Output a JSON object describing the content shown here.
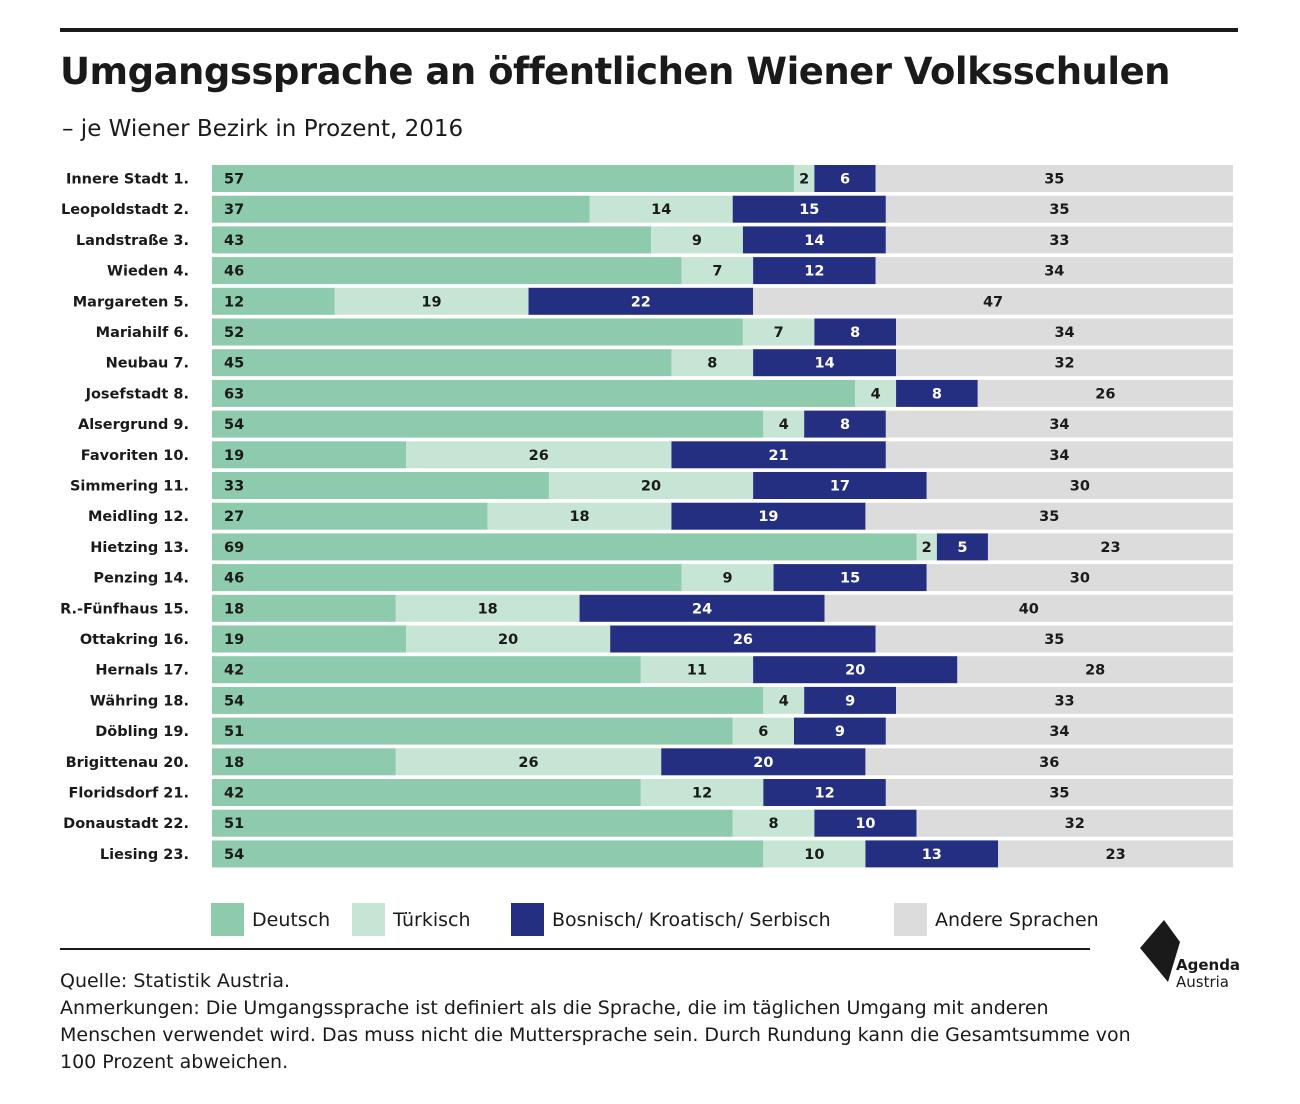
{
  "title": "Umgangssprache an öffentlichen Wiener Volksschulen",
  "subtitle": "– je Wiener Bezirk in Prozent, 2016",
  "colors": {
    "deutsch": "#8ecaac",
    "tuerkisch": "#c7e5d4",
    "bks": "#252f82",
    "andere": "#dcdcdc"
  },
  "chart_data": {
    "type": "bar",
    "orientation": "horizontal",
    "stacked": true,
    "xlim": [
      0,
      100
    ],
    "categories": [
      "Innere Stadt 1.",
      "Leopoldstadt 2.",
      "Landstraße 3.",
      "Wieden 4.",
      "Margareten 5.",
      "Mariahilf 6.",
      "Neubau 7.",
      "Josefstadt 8.",
      "Alsergrund 9.",
      "Favoriten 10.",
      "Simmering 11.",
      "Meidling 12.",
      "Hietzing 13.",
      "Penzing 14.",
      "R.-Fünfhaus 15.",
      "Ottakring 16.",
      "Hernals 17.",
      "Währing 18.",
      "Döbling 19.",
      "Brigittenau 20.",
      "Floridsdorf 21.",
      "Donaustadt 22.",
      "Liesing 23."
    ],
    "series": [
      {
        "name": "Deutsch",
        "color": "#8ecaac",
        "values": [
          57,
          37,
          43,
          46,
          12,
          52,
          45,
          63,
          54,
          19,
          33,
          27,
          69,
          46,
          18,
          19,
          42,
          54,
          51,
          18,
          42,
          51,
          54
        ]
      },
      {
        "name": "Türkisch",
        "color": "#c7e5d4",
        "values": [
          2,
          14,
          9,
          7,
          19,
          7,
          8,
          4,
          4,
          26,
          20,
          18,
          2,
          9,
          18,
          20,
          11,
          4,
          6,
          26,
          12,
          8,
          10
        ]
      },
      {
        "name": "Bosnisch/ Kroatisch/ Serbisch",
        "color": "#252f82",
        "values": [
          6,
          15,
          14,
          12,
          22,
          8,
          14,
          8,
          8,
          21,
          17,
          19,
          5,
          15,
          24,
          26,
          20,
          9,
          9,
          20,
          12,
          10,
          13
        ]
      },
      {
        "name": "Andere Sprachen",
        "color": "#dcdcdc",
        "values": [
          35,
          35,
          33,
          34,
          47,
          34,
          32,
          26,
          34,
          34,
          30,
          35,
          23,
          30,
          40,
          35,
          28,
          33,
          34,
          36,
          35,
          32,
          23
        ]
      }
    ],
    "legend": "bottom"
  },
  "source": "Quelle: Statistik Austria.",
  "notes": "Anmerkungen: Die Umgangssprache ist definiert als die Sprache, die im täglichen Umgang mit anderen Menschen verwendet wird. Das muss nicht die Muttersprache sein. Durch Rundung kann die Gesamtsumme von 100 Prozent abweichen.",
  "logo": {
    "line1": "Agenda",
    "line2": "Austria"
  }
}
